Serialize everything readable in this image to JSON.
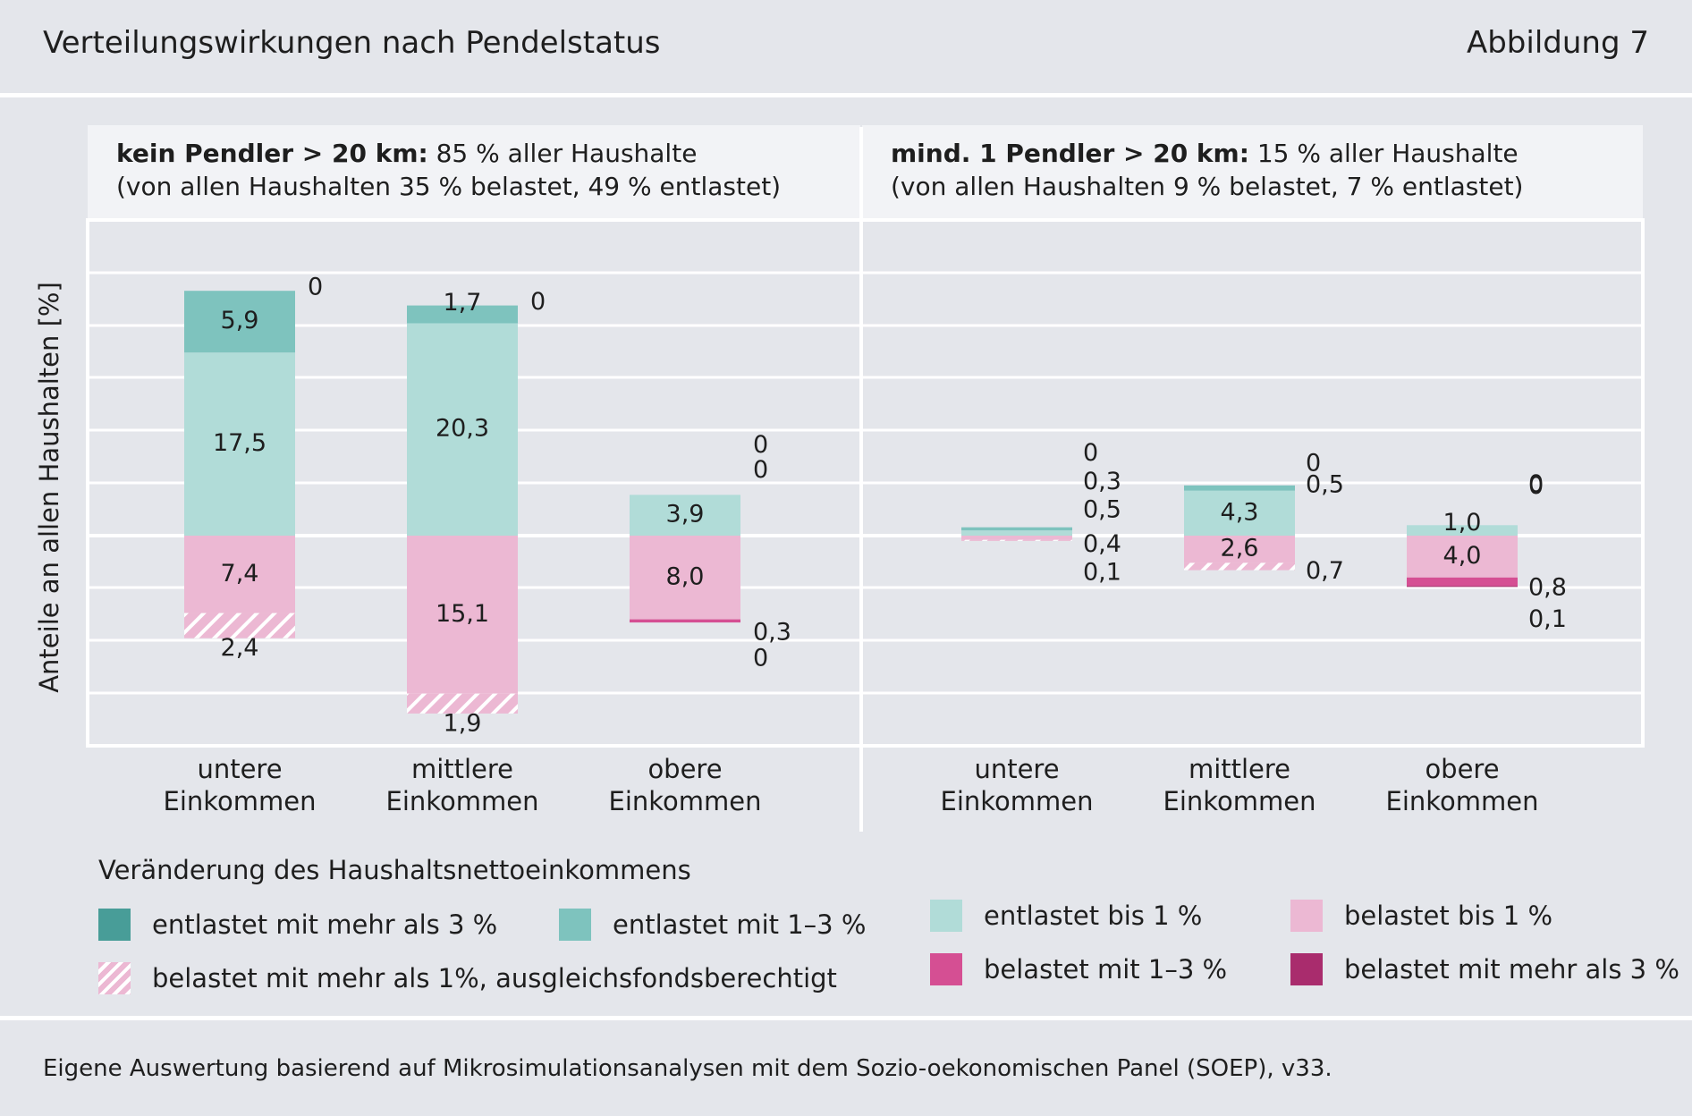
{
  "header": {
    "title": "Verteilungswirkungen nach Pendelstatus",
    "figure_label": "Abbildung 7"
  },
  "footer": {
    "source": "Eigene Auswertung basierend auf Mikrosimulationsanalysen mit dem Sozio-oekonomischen Panel (SOEP), v33."
  },
  "colors": {
    "ent_gt3": "#489d98",
    "ent_1_3": "#7ec3be",
    "ent_lt1": "#b1dcd8",
    "bel_lt1": "#ecb8d3",
    "bel_1_3": "#d54f93",
    "bel_gt3": "#a92c6d",
    "bel_fonds": "hatched pink/white"
  },
  "chart_data": {
    "type": "bar",
    "stacked": true,
    "ylabel": "Anteile an allen Haushalten [%]",
    "grid": true,
    "legend_position": "bottom",
    "categories": [
      "untere Einkommen",
      "mittlere Einkommen",
      "obere Einkommen"
    ],
    "legend": {
      "title": "Veränderung des Haushaltsnettoeinkommens",
      "items": [
        {
          "key": "ent_gt3",
          "label": "entlastet mit mehr als 3 %"
        },
        {
          "key": "ent_1_3",
          "label": "entlastet mit 1–3 %"
        },
        {
          "key": "ent_lt1",
          "label": "entlastet bis 1 %"
        },
        {
          "key": "bel_lt1",
          "label": "belastet bis 1 %"
        },
        {
          "key": "bel_fonds",
          "label": "belastet mit mehr als 1%, ausgleichsfondsberechtigt"
        },
        {
          "key": "bel_1_3",
          "label": "belastet mit 1–3 %"
        },
        {
          "key": "bel_gt3",
          "label": "belastet mit mehr als 3 %"
        }
      ]
    },
    "panels": [
      {
        "title_bold": "kein Pendler > 20 km:",
        "title_rest": " 85 % aller Haushalte",
        "subtitle": "(von allen Haushalten 35 % belastet, 49 % entlastet)",
        "bars": [
          {
            "ent_lt1": 17.5,
            "ent_1_3": 5.9,
            "ent_gt3": 0.0,
            "bel_lt1": 7.4,
            "bel_fonds": 2.4,
            "bel_1_3": 0.0,
            "bel_gt3": 0.0,
            "labels": {
              "ent_lt1": "17,5",
              "ent_1_3": "5,9",
              "ent_gt3": "0",
              "bel_lt1": "7,4",
              "bel_fonds": "2,4"
            }
          },
          {
            "ent_lt1": 20.3,
            "ent_1_3": 1.7,
            "ent_gt3": 0.0,
            "bel_lt1": 15.1,
            "bel_fonds": 1.9,
            "bel_1_3": 0.0,
            "bel_gt3": 0.0,
            "labels": {
              "ent_lt1": "20,3",
              "ent_1_3": "1,7",
              "ent_gt3": "0",
              "bel_lt1": "15,1",
              "bel_fonds": "1,9"
            }
          },
          {
            "ent_lt1": 3.9,
            "ent_1_3": 0.0,
            "ent_gt3": 0.0,
            "bel_lt1": 8.0,
            "bel_fonds": 0.0,
            "bel_1_3": 0.3,
            "bel_gt3": 0.0,
            "labels": {
              "ent_lt1": "3,9",
              "ent_1_3": "0",
              "ent_gt3": "0",
              "bel_lt1": "8,0",
              "bel_1_3": "0,3",
              "bel_gt3": "0"
            }
          }
        ]
      },
      {
        "title_bold": "mind. 1 Pendler > 20 km:",
        "title_rest": " 15 % aller Haushalte",
        "subtitle": "(von allen Haushalten 9 % belastet, 7 % entlastet)",
        "bars": [
          {
            "ent_lt1": 0.5,
            "ent_1_3": 0.3,
            "ent_gt3": 0.0,
            "bel_lt1": 0.4,
            "bel_fonds": 0.1,
            "bel_1_3": 0.0,
            "bel_gt3": 0.0,
            "labels": {
              "ent_gt3": "0",
              "ent_1_3": "0,3",
              "ent_lt1": "0,5",
              "bel_lt1": "0,4",
              "bel_fonds": "0,1"
            }
          },
          {
            "ent_lt1": 4.3,
            "ent_1_3": 0.5,
            "ent_gt3": 0.0,
            "bel_lt1": 2.6,
            "bel_fonds": 0.7,
            "bel_1_3": 0.0,
            "bel_gt3": 0.0,
            "labels": {
              "ent_gt3": "0",
              "ent_1_3": "0,5",
              "ent_lt1": "4,3",
              "bel_lt1": "2,6",
              "bel_fonds": "0,7"
            }
          },
          {
            "ent_lt1": 1.0,
            "ent_1_3": 0.0,
            "ent_gt3": 0.0,
            "bel_lt1": 4.0,
            "bel_fonds": 0.0,
            "bel_1_3": 0.8,
            "bel_gt3": 0.1,
            "labels": {
              "ent_gt3": "0",
              "ent_1_3": "0",
              "ent_lt1": "1,0",
              "bel_lt1": "4,0",
              "bel_1_3": "0,8",
              "bel_gt3": "0,1"
            }
          }
        ]
      }
    ]
  }
}
